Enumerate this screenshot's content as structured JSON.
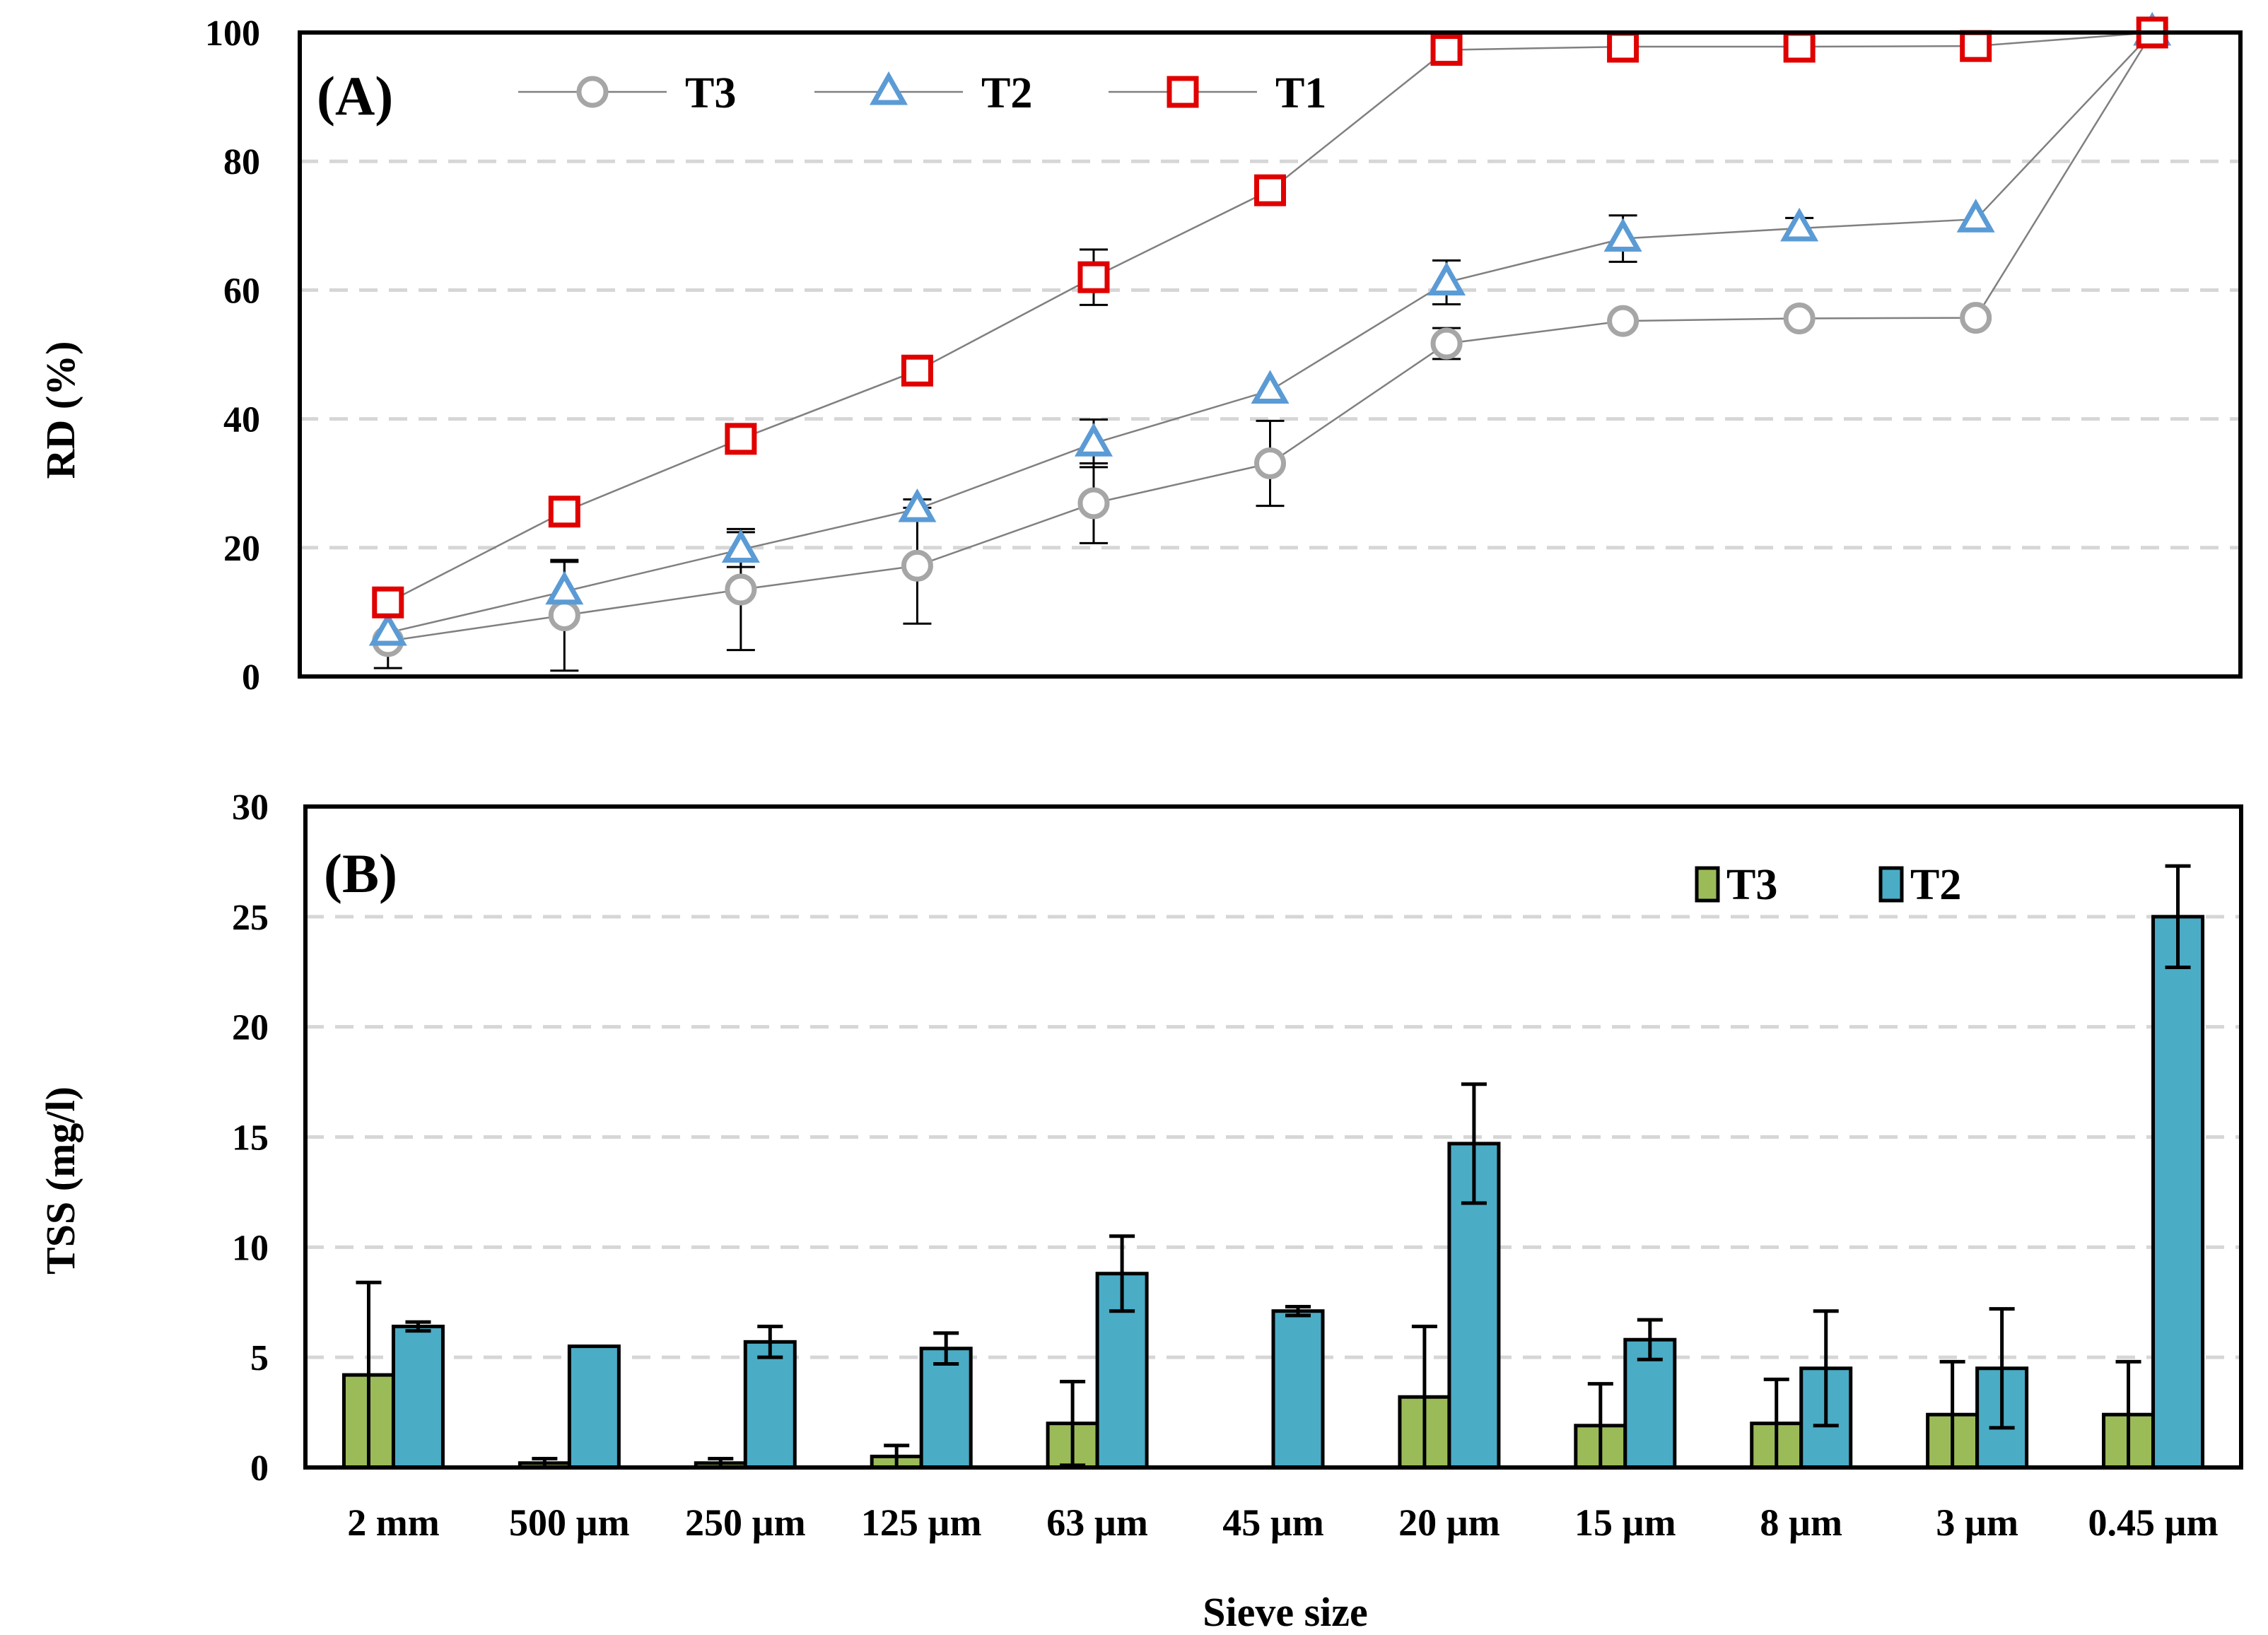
{
  "chart_data": [
    {
      "panel": "(A)",
      "type": "line",
      "ylabel": "RD (%)",
      "ylim": [
        0,
        100
      ],
      "yticks": [
        "0",
        "20",
        "40",
        "60",
        "80",
        "100"
      ],
      "grid": "horizontal dashed",
      "legend_placement": "top-left",
      "categories": [
        "2 mm",
        "500 µm",
        "250 µm",
        "125 µm",
        "63 µm",
        "45 µm",
        "20 µm",
        "15 µm",
        "8 µm",
        "3 µm",
        "0.45 µm"
      ],
      "series": [
        {
          "name": "T3",
          "marker": "circle",
          "color": "#a6a6a6",
          "values": [
            5.5,
            9.5,
            13.5,
            17.2,
            26.9,
            33.1,
            51.7,
            55.2,
            55.6,
            55.7,
            100
          ],
          "errors": [
            4.2,
            8.6,
            9.4,
            9.0,
            6.2,
            6.6,
            2.4,
            0,
            0,
            0,
            0
          ]
        },
        {
          "name": "T2",
          "marker": "triangle",
          "color": "#5b9bd5",
          "values": [
            6.8,
            13.2,
            19.7,
            26.0,
            36.2,
            44.4,
            61.2,
            68.0,
            69.6,
            71.0,
            100
          ],
          "errors": [
            0,
            4.6,
            2.7,
            1.5,
            3.7,
            0,
            3.4,
            3.6,
            1.6,
            0,
            0
          ]
        },
        {
          "name": "T1",
          "marker": "square",
          "color": "#e00000",
          "values": [
            11.5,
            25.6,
            36.9,
            47.5,
            62.0,
            75.5,
            97.3,
            97.8,
            97.8,
            97.9,
            100
          ],
          "errors": [
            0,
            0,
            0,
            0,
            4.3,
            0,
            0,
            0,
            0,
            0,
            0
          ]
        }
      ]
    },
    {
      "panel": "(B)",
      "type": "bar",
      "xlabel": "Sieve size",
      "ylabel": "TSS (mg/l)",
      "ylim": [
        0,
        30
      ],
      "yticks": [
        "0",
        "5",
        "10",
        "15",
        "20",
        "25",
        "30"
      ],
      "grid": "horizontal dashed",
      "legend_placement": "top-right",
      "categories": [
        "2 mm",
        "500 µm",
        "250 µm",
        "125 µm",
        "63 µm",
        "45 µm",
        "20 µm",
        "15 µm",
        "8 µm",
        "3 µm",
        "0.45 µm"
      ],
      "series": [
        {
          "name": "T3",
          "color": "#9bbb59",
          "values": [
            4.2,
            0.2,
            0.2,
            0.5,
            2.0,
            0,
            3.2,
            1.9,
            2.0,
            2.4,
            2.4
          ],
          "errors": [
            4.2,
            0.2,
            0.2,
            0.5,
            1.9,
            0,
            3.2,
            1.9,
            2.0,
            2.4,
            2.4
          ]
        },
        {
          "name": "T2",
          "color": "#4bacc6",
          "values": [
            6.4,
            5.5,
            5.7,
            5.4,
            8.8,
            7.1,
            14.7,
            5.8,
            4.5,
            4.5,
            25.0
          ],
          "errors": [
            0.2,
            0,
            0.7,
            0.7,
            1.7,
            0.2,
            2.7,
            0.9,
            2.6,
            2.7,
            2.3
          ]
        }
      ]
    }
  ]
}
